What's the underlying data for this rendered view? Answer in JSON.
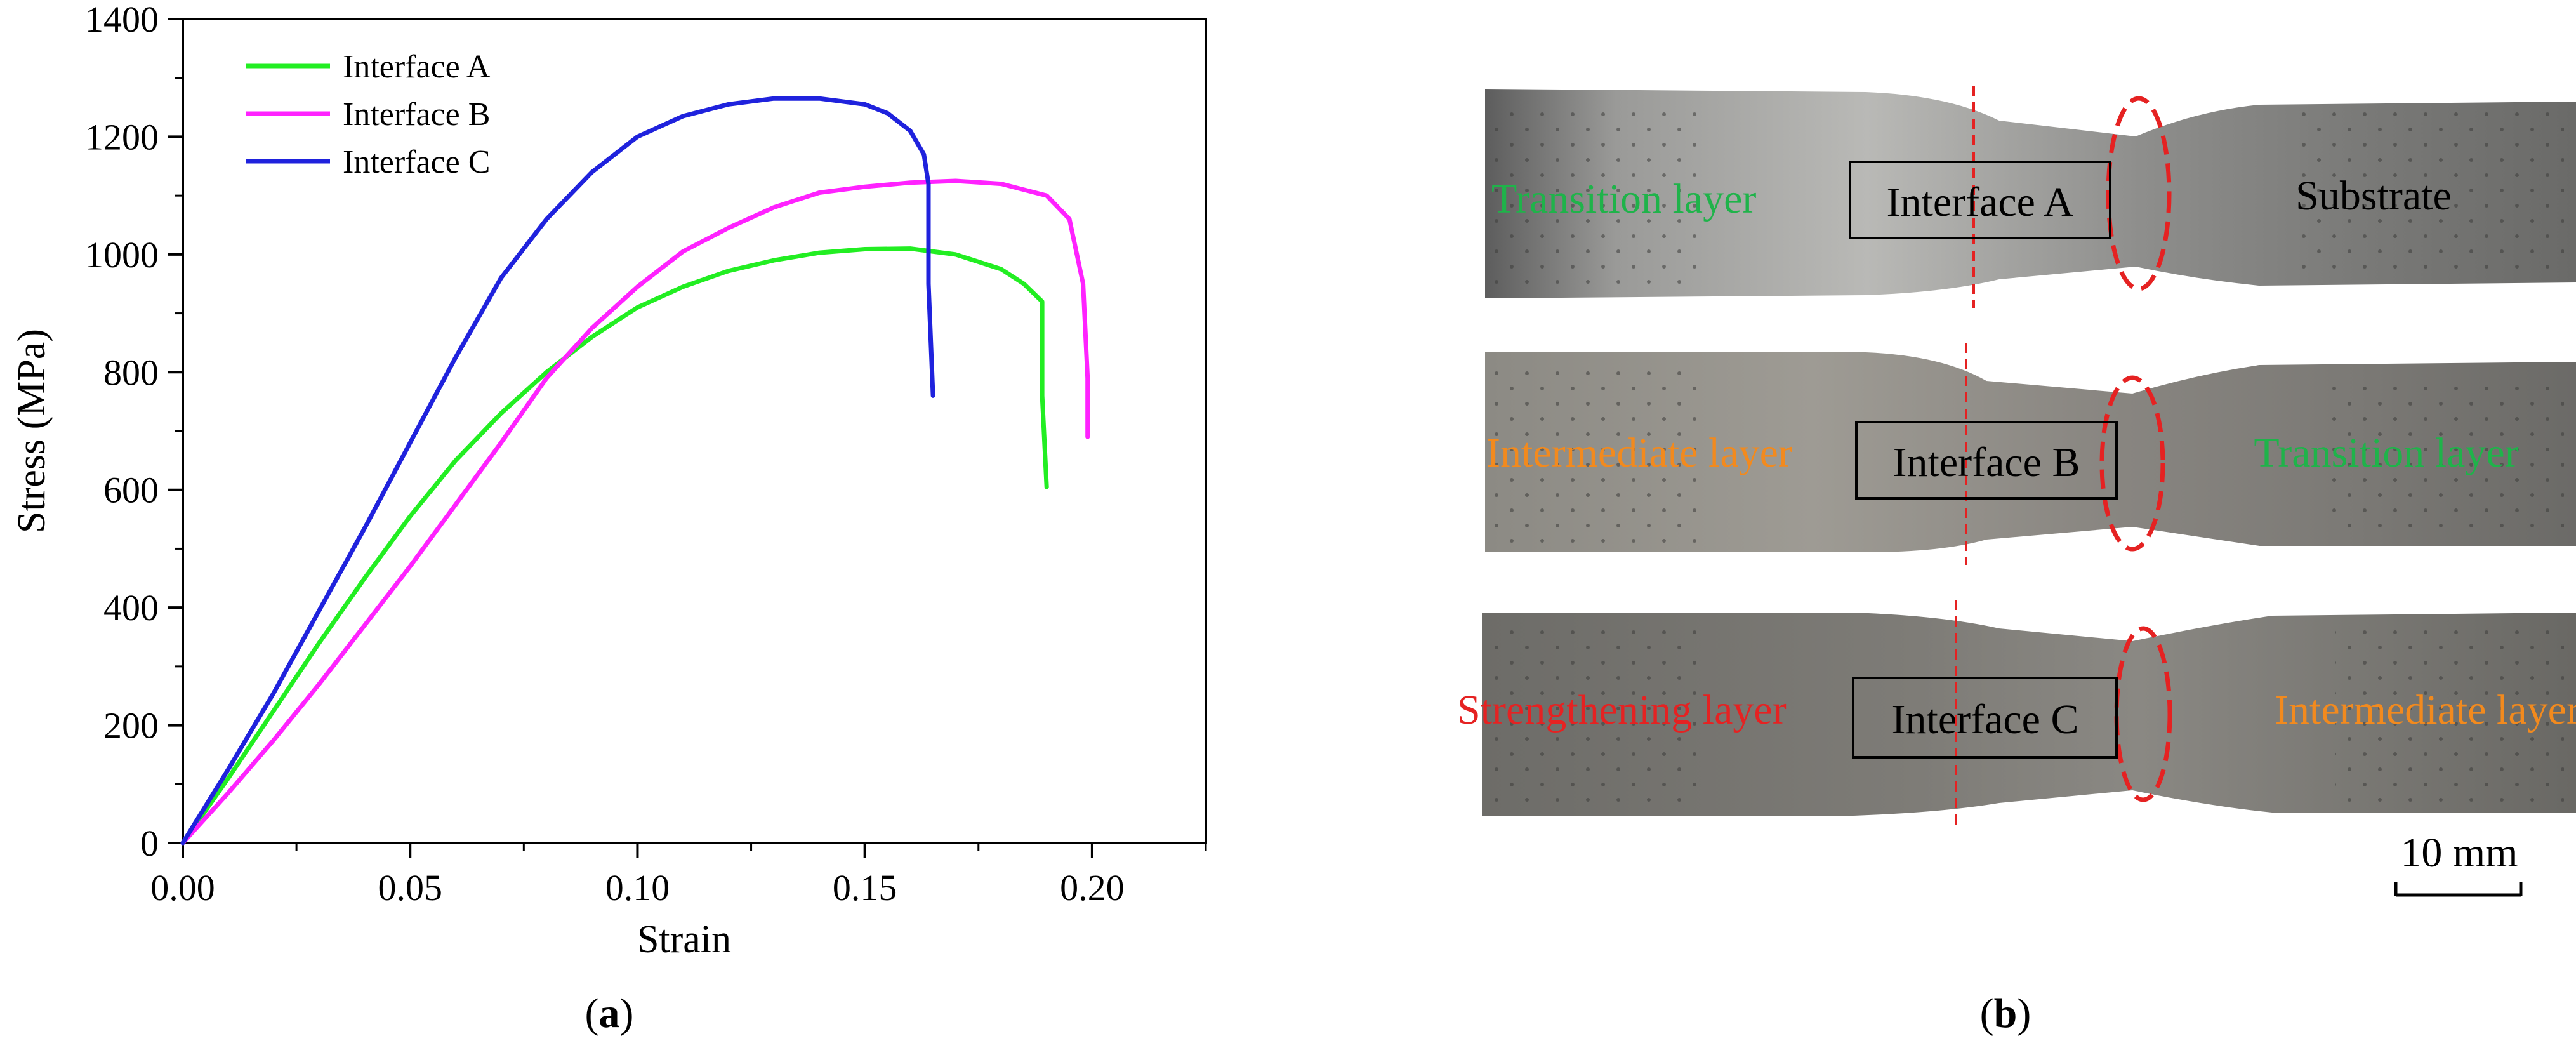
{
  "chart_data": {
    "type": "line",
    "xlabel": "Strain",
    "ylabel": "Stress (MPa)",
    "xlim": [
      0,
      0.225
    ],
    "ylim": [
      0,
      1400
    ],
    "xticks": [
      "0.00",
      "0.05",
      "0.10",
      "0.15",
      "0.20"
    ],
    "yticks": [
      "0",
      "200",
      "400",
      "600",
      "800",
      "1000",
      "1200",
      "1400"
    ],
    "legend_position": "top-left",
    "grid": false,
    "series": [
      {
        "name": "Interface A",
        "color": "#22ee22",
        "points": [
          [
            0,
            0
          ],
          [
            0.01,
            110
          ],
          [
            0.02,
            225
          ],
          [
            0.03,
            340
          ],
          [
            0.04,
            450
          ],
          [
            0.05,
            555
          ],
          [
            0.06,
            650
          ],
          [
            0.07,
            730
          ],
          [
            0.08,
            800
          ],
          [
            0.09,
            860
          ],
          [
            0.1,
            910
          ],
          [
            0.11,
            945
          ],
          [
            0.12,
            972
          ],
          [
            0.13,
            990
          ],
          [
            0.14,
            1003
          ],
          [
            0.15,
            1009
          ],
          [
            0.16,
            1010
          ],
          [
            0.17,
            1000
          ],
          [
            0.18,
            975
          ],
          [
            0.185,
            950
          ],
          [
            0.189,
            920
          ],
          [
            0.189,
            760
          ],
          [
            0.19,
            605
          ]
        ]
      },
      {
        "name": "Interface B",
        "color": "#ff22ff",
        "points": [
          [
            0,
            0
          ],
          [
            0.01,
            85
          ],
          [
            0.02,
            175
          ],
          [
            0.03,
            270
          ],
          [
            0.04,
            370
          ],
          [
            0.05,
            470
          ],
          [
            0.06,
            575
          ],
          [
            0.07,
            680
          ],
          [
            0.08,
            790
          ],
          [
            0.09,
            875
          ],
          [
            0.1,
            945
          ],
          [
            0.11,
            1005
          ],
          [
            0.12,
            1045
          ],
          [
            0.13,
            1080
          ],
          [
            0.14,
            1105
          ],
          [
            0.15,
            1115
          ],
          [
            0.16,
            1122
          ],
          [
            0.17,
            1125
          ],
          [
            0.18,
            1120
          ],
          [
            0.19,
            1100
          ],
          [
            0.195,
            1060
          ],
          [
            0.198,
            950
          ],
          [
            0.199,
            790
          ],
          [
            0.199,
            690
          ]
        ]
      },
      {
        "name": "Interface C",
        "color": "#1f22dd",
        "points": [
          [
            0,
            0
          ],
          [
            0.01,
            125
          ],
          [
            0.02,
            255
          ],
          [
            0.03,
            395
          ],
          [
            0.04,
            535
          ],
          [
            0.05,
            680
          ],
          [
            0.06,
            825
          ],
          [
            0.07,
            960
          ],
          [
            0.08,
            1060
          ],
          [
            0.09,
            1140
          ],
          [
            0.1,
            1200
          ],
          [
            0.11,
            1235
          ],
          [
            0.12,
            1255
          ],
          [
            0.13,
            1265
          ],
          [
            0.14,
            1265
          ],
          [
            0.15,
            1255
          ],
          [
            0.155,
            1240
          ],
          [
            0.16,
            1210
          ],
          [
            0.163,
            1170
          ],
          [
            0.164,
            1120
          ],
          [
            0.164,
            950
          ],
          [
            0.165,
            760
          ]
        ]
      }
    ]
  },
  "panels": {
    "a_open": "(",
    "a_letter": "a",
    "a_close": ")",
    "b_open": "(",
    "b_letter": "b",
    "b_close": ")"
  },
  "specimens": {
    "top": {
      "left_label": "Transition layer",
      "left_color": "#1fb34a",
      "box_label": "Interface A",
      "right_label": "Substrate",
      "right_color": "#000000"
    },
    "middle": {
      "left_label": "Intermediate layer",
      "left_color": "#f28a1e",
      "box_label": "Interface B",
      "right_label": "Transition layer",
      "right_color": "#1fb34a"
    },
    "bottom": {
      "left_label": "Strengthening layer",
      "left_color": "#e52222",
      "box_label": "Interface C",
      "right_label": "Intermediate layer",
      "right_color": "#f28a1e"
    }
  },
  "scale_bar": {
    "label": "10 mm"
  }
}
